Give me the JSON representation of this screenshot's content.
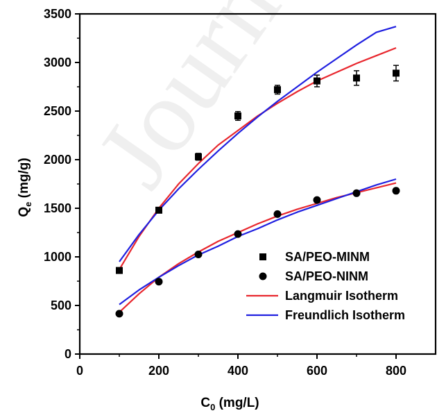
{
  "watermark": {
    "text": "Journal"
  },
  "chart_data": {
    "type": "scatter",
    "xlabel": {
      "main": "C",
      "sub": "0",
      "rest": " (mg/L)"
    },
    "ylabel": {
      "main": "Q",
      "sub": "e",
      "rest": " (mg/g)"
    },
    "xlim": [
      0,
      900
    ],
    "ylim": [
      0,
      3500
    ],
    "xticks": [
      0,
      200,
      400,
      600,
      800
    ],
    "yticks": [
      0,
      500,
      1000,
      1500,
      2000,
      2500,
      3000,
      3500
    ],
    "grid": false,
    "legend_position": "bottom-right",
    "series": [
      {
        "name": "SA/PEO-MINM",
        "kind": "points",
        "marker": "square",
        "color": "#000000",
        "x": [
          100,
          200,
          300,
          400,
          500,
          600,
          700,
          800
        ],
        "y": [
          860,
          1480,
          2030,
          2450,
          2720,
          2810,
          2840,
          2890
        ],
        "err": [
          20,
          25,
          35,
          45,
          45,
          60,
          75,
          80
        ]
      },
      {
        "name": "SA/PEO-NINM",
        "kind": "points",
        "marker": "circle",
        "color": "#000000",
        "x": [
          100,
          200,
          300,
          400,
          500,
          600,
          700,
          800
        ],
        "y": [
          415,
          745,
          1025,
          1235,
          1440,
          1585,
          1655,
          1680
        ]
      },
      {
        "name": "Langmuir Isotherm",
        "kind": "line",
        "color": "#e8262d",
        "curves": [
          {
            "x": [
              100,
              150,
              200,
              250,
              300,
              350,
              400,
              450,
              500,
              550,
              600,
              650,
              700,
              750,
              800
            ],
            "y": [
              870,
              1210,
              1500,
              1750,
              1960,
              2150,
              2300,
              2450,
              2580,
              2700,
              2810,
              2900,
              2990,
              3070,
              3150
            ]
          },
          {
            "x": [
              100,
              150,
              200,
              250,
              300,
              350,
              400,
              450,
              500,
              550,
              600,
              650,
              700,
              750,
              800
            ],
            "y": [
              430,
              620,
              790,
              930,
              1050,
              1160,
              1250,
              1340,
              1420,
              1490,
              1550,
              1610,
              1660,
              1710,
              1760
            ]
          }
        ]
      },
      {
        "name": "Freundlich Isotherm",
        "kind": "line",
        "color": "#1f1fe0",
        "curves": [
          {
            "x": [
              100,
              150,
              200,
              250,
              300,
              350,
              400,
              450,
              500,
              550,
              600,
              650,
              700,
              750,
              800
            ],
            "y": [
              950,
              1230,
              1480,
              1700,
              1900,
              2090,
              2270,
              2440,
              2600,
              2750,
              2900,
              3040,
              3180,
              3310,
              3370
            ]
          },
          {
            "x": [
              100,
              150,
              200,
              250,
              300,
              350,
              400,
              450,
              500,
              550,
              600,
              650,
              700,
              750,
              800
            ],
            "y": [
              510,
              660,
              790,
              910,
              1020,
              1110,
              1210,
              1290,
              1380,
              1460,
              1530,
              1600,
              1670,
              1740,
              1800
            ]
          }
        ]
      }
    ]
  }
}
